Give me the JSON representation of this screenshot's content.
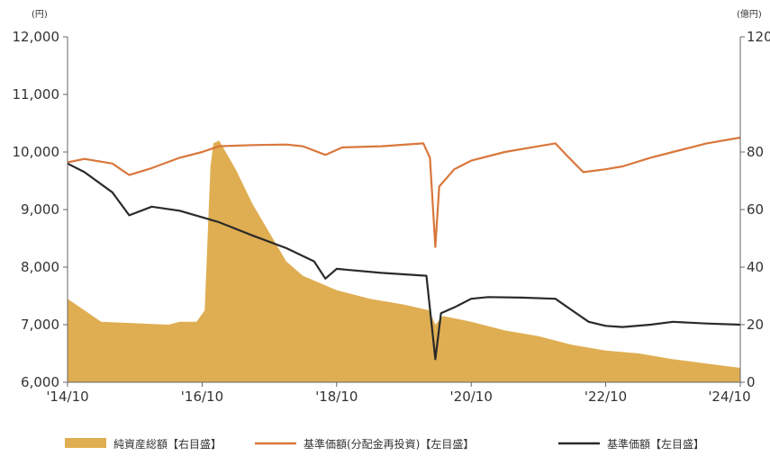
{
  "chart_data": {
    "type": "line",
    "title": "",
    "units": {
      "left": "(円)",
      "right": "(億円)"
    },
    "x_ticks": [
      "'14/10",
      "'16/10",
      "'18/10",
      "'20/10",
      "'22/10",
      "'24/10"
    ],
    "y_left": {
      "range": [
        6000,
        12000
      ],
      "ticks": [
        "6,000",
        "7,000",
        "8,000",
        "9,000",
        "10,000",
        "11,000",
        "12,000"
      ]
    },
    "y_right": {
      "range": [
        0,
        120
      ],
      "ticks": [
        "0",
        "20",
        "40",
        "60",
        "80",
        "120"
      ]
    },
    "legend": {
      "items": [
        {
          "label": "純資産総額【右目盛】",
          "color": "#dfae52",
          "style": "area"
        },
        {
          "label": "基準価額(分配金再投資)【左目盛】",
          "color": "#d9773b",
          "style": "line"
        },
        {
          "label": "基準価額【左目盛】",
          "color": "#2a2a2a",
          "style": "line"
        }
      ]
    },
    "series": [
      {
        "name": "純資産総額【右目盛】",
        "axis": "right",
        "type": "area",
        "color": "#dfae52",
        "points": [
          [
            "2014-10-01",
            29
          ],
          [
            "2015-01-01",
            25
          ],
          [
            "2015-04-01",
            21
          ],
          [
            "2015-10-01",
            20.5
          ],
          [
            "2016-04-01",
            20
          ],
          [
            "2016-06-01",
            21
          ],
          [
            "2016-09-01",
            21
          ],
          [
            "2016-10-15",
            25
          ],
          [
            "2016-11-15",
            75
          ],
          [
            "2016-12-01",
            83
          ],
          [
            "2017-01-01",
            84
          ],
          [
            "2017-04-01",
            74
          ],
          [
            "2017-07-01",
            62
          ],
          [
            "2017-10-01",
            52
          ],
          [
            "2018-01-01",
            42
          ],
          [
            "2018-04-01",
            37
          ],
          [
            "2018-10-01",
            32
          ],
          [
            "2019-04-01",
            29
          ],
          [
            "2019-10-01",
            27
          ],
          [
            "2020-02-15",
            25
          ],
          [
            "2020-03-20",
            20
          ],
          [
            "2020-05-01",
            23
          ],
          [
            "2020-10-01",
            21
          ],
          [
            "2021-04-01",
            18
          ],
          [
            "2021-10-01",
            16
          ],
          [
            "2022-04-01",
            13
          ],
          [
            "2022-10-01",
            11
          ],
          [
            "2023-04-01",
            10
          ],
          [
            "2023-10-01",
            8
          ],
          [
            "2024-04-01",
            6.5
          ],
          [
            "2024-10-01",
            5
          ]
        ]
      },
      {
        "name": "基準価額(分配金再投資)【左目盛】",
        "axis": "left",
        "type": "line",
        "color": "#d9773b",
        "points": [
          [
            "2014-10-01",
            9820
          ],
          [
            "2015-01-01",
            9880
          ],
          [
            "2015-06-01",
            9800
          ],
          [
            "2015-09-01",
            9600
          ],
          [
            "2016-01-01",
            9720
          ],
          [
            "2016-06-01",
            9900
          ],
          [
            "2016-10-01",
            10000
          ],
          [
            "2017-01-01",
            10100
          ],
          [
            "2017-07-01",
            10120
          ],
          [
            "2018-01-01",
            10130
          ],
          [
            "2018-04-01",
            10100
          ],
          [
            "2018-08-01",
            9950
          ],
          [
            "2018-11-01",
            10080
          ],
          [
            "2019-06-01",
            10100
          ],
          [
            "2020-01-15",
            10150
          ],
          [
            "2020-02-20",
            9900
          ],
          [
            "2020-03-20",
            8350
          ],
          [
            "2020-04-10",
            9400
          ],
          [
            "2020-07-01",
            9700
          ],
          [
            "2020-10-01",
            9850
          ],
          [
            "2021-04-01",
            10000
          ],
          [
            "2021-10-01",
            10100
          ],
          [
            "2022-01-01",
            10150
          ],
          [
            "2022-03-01",
            9950
          ],
          [
            "2022-06-01",
            9650
          ],
          [
            "2022-10-01",
            9700
          ],
          [
            "2023-01-01",
            9750
          ],
          [
            "2023-06-01",
            9900
          ],
          [
            "2023-10-01",
            10000
          ],
          [
            "2024-04-01",
            10150
          ],
          [
            "2024-10-01",
            10250
          ]
        ]
      },
      {
        "name": "基準価額【左目盛】",
        "axis": "left",
        "type": "line",
        "color": "#2a2a2a",
        "points": [
          [
            "2014-10-01",
            9800
          ],
          [
            "2015-01-01",
            9650
          ],
          [
            "2015-06-01",
            9300
          ],
          [
            "2015-09-01",
            8900
          ],
          [
            "2016-01-01",
            9050
          ],
          [
            "2016-06-01",
            8980
          ],
          [
            "2017-01-01",
            8780
          ],
          [
            "2017-07-01",
            8550
          ],
          [
            "2018-01-01",
            8330
          ],
          [
            "2018-06-01",
            8100
          ],
          [
            "2018-08-01",
            7800
          ],
          [
            "2018-10-01",
            7970
          ],
          [
            "2019-06-01",
            7900
          ],
          [
            "2020-02-01",
            7850
          ],
          [
            "2020-03-20",
            6400
          ],
          [
            "2020-04-20",
            7200
          ],
          [
            "2020-07-01",
            7300
          ],
          [
            "2020-10-01",
            7450
          ],
          [
            "2021-01-01",
            7480
          ],
          [
            "2021-07-01",
            7470
          ],
          [
            "2022-01-01",
            7450
          ],
          [
            "2022-04-01",
            7250
          ],
          [
            "2022-07-01",
            7050
          ],
          [
            "2022-10-01",
            6980
          ],
          [
            "2023-01-01",
            6960
          ],
          [
            "2023-06-01",
            7000
          ],
          [
            "2023-10-01",
            7050
          ],
          [
            "2024-04-01",
            7020
          ],
          [
            "2024-10-01",
            7000
          ]
        ]
      }
    ]
  }
}
